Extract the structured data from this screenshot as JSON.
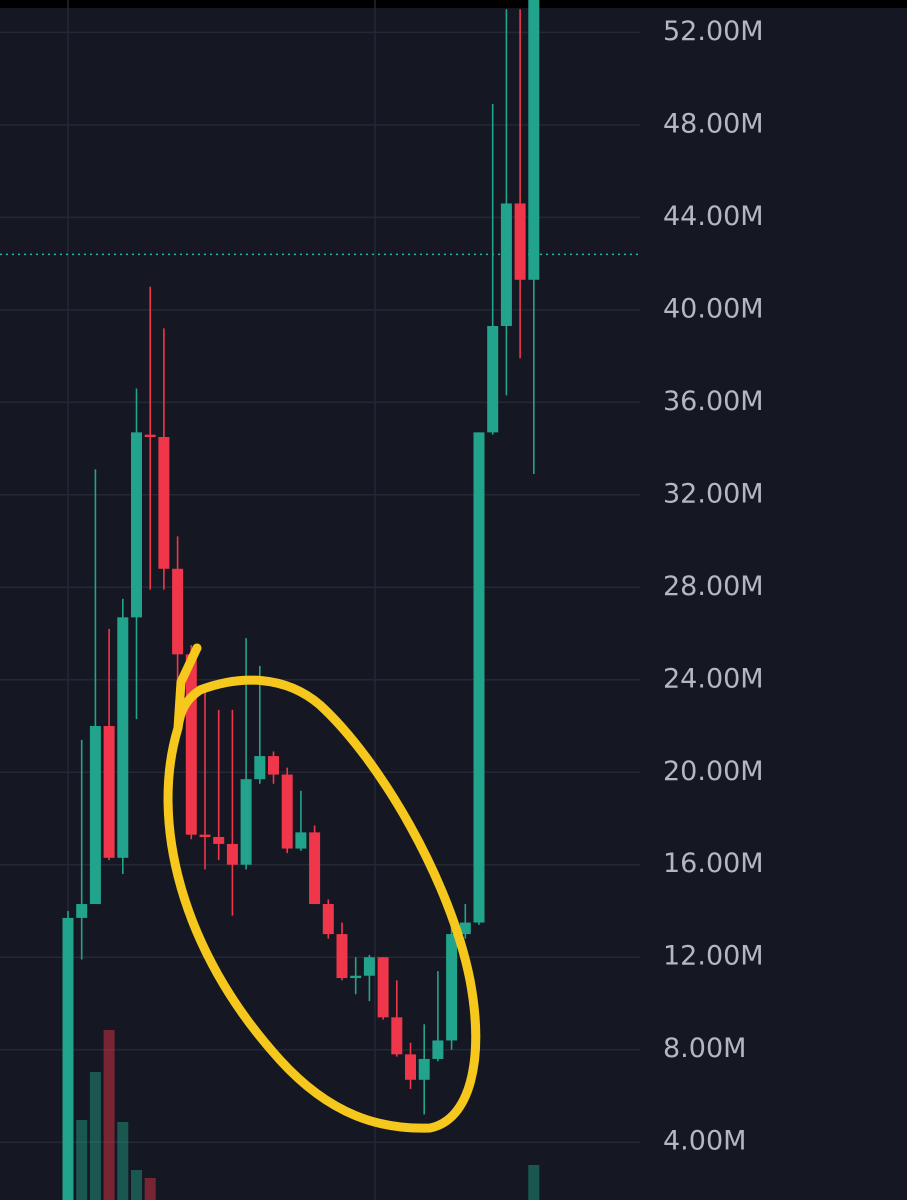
{
  "chart_data": {
    "type": "candlestick",
    "up_color": "#22a48c",
    "down_color": "#f0364a",
    "ylim": [
      1500000,
      53400000
    ],
    "yticks": [
      {
        "value": 4000000,
        "label": "4.00M"
      },
      {
        "value": 8000000,
        "label": "8.00M"
      },
      {
        "value": 12000000,
        "label": "12.00M"
      },
      {
        "value": 16000000,
        "label": "16.00M"
      },
      {
        "value": 20000000,
        "label": "20.00M"
      },
      {
        "value": 24000000,
        "label": "24.00M"
      },
      {
        "value": 28000000,
        "label": "28.00M"
      },
      {
        "value": 32000000,
        "label": "32.00M"
      },
      {
        "value": 36000000,
        "label": "36.00M"
      },
      {
        "value": 40000000,
        "label": "40.00M"
      },
      {
        "value": 44000000,
        "label": "44.00M"
      },
      {
        "value": 48000000,
        "label": "48.00M"
      },
      {
        "value": 52000000,
        "label": "52.00M"
      }
    ],
    "grid": true,
    "price_line": 42400000,
    "candles": [
      {
        "o": 1500000,
        "h": 14000000,
        "l": 1500000,
        "c": 13700000
      },
      {
        "o": 13700000,
        "h": 21400000,
        "l": 11900000,
        "c": 14300000
      },
      {
        "o": 14300000,
        "h": 33100000,
        "l": 14300000,
        "c": 22000000
      },
      {
        "o": 22000000,
        "h": 26200000,
        "l": 16200000,
        "c": 16300000
      },
      {
        "o": 16300000,
        "h": 27500000,
        "l": 15600000,
        "c": 26700000
      },
      {
        "o": 26700000,
        "h": 36600000,
        "l": 22300000,
        "c": 34700000
      },
      {
        "o": 34600000,
        "h": 41000000,
        "l": 27900000,
        "c": 34500000
      },
      {
        "o": 34500000,
        "h": 39200000,
        "l": 27900000,
        "c": 28800000
      },
      {
        "o": 28800000,
        "h": 30200000,
        "l": 23600000,
        "c": 25100000
      },
      {
        "o": 25100000,
        "h": 25500000,
        "l": 17100000,
        "c": 17300000
      },
      {
        "o": 17300000,
        "h": 23600000,
        "l": 15800000,
        "c": 17200000
      },
      {
        "o": 17200000,
        "h": 22700000,
        "l": 16200000,
        "c": 16900000
      },
      {
        "o": 16900000,
        "h": 22700000,
        "l": 13800000,
        "c": 16000000
      },
      {
        "o": 16000000,
        "h": 25800000,
        "l": 15800000,
        "c": 19700000
      },
      {
        "o": 19700000,
        "h": 24600000,
        "l": 19500000,
        "c": 20700000
      },
      {
        "o": 20700000,
        "h": 20900000,
        "l": 19500000,
        "c": 19900000
      },
      {
        "o": 19900000,
        "h": 20200000,
        "l": 16500000,
        "c": 16700000
      },
      {
        "o": 16700000,
        "h": 19200000,
        "l": 16600000,
        "c": 17400000
      },
      {
        "o": 17400000,
        "h": 17700000,
        "l": 14300000,
        "c": 14300000
      },
      {
        "o": 14300000,
        "h": 14500000,
        "l": 12800000,
        "c": 13000000
      },
      {
        "o": 13000000,
        "h": 13500000,
        "l": 11000000,
        "c": 11100000
      },
      {
        "o": 11100000,
        "h": 12000000,
        "l": 10400000,
        "c": 11200000
      },
      {
        "o": 11200000,
        "h": 12100000,
        "l": 10100000,
        "c": 12000000
      },
      {
        "o": 12000000,
        "h": 12000000,
        "l": 9300000,
        "c": 9400000
      },
      {
        "o": 9400000,
        "h": 11000000,
        "l": 7700000,
        "c": 7800000
      },
      {
        "o": 7800000,
        "h": 8300000,
        "l": 6300000,
        "c": 6700000
      },
      {
        "o": 6700000,
        "h": 9100000,
        "l": 5200000,
        "c": 7600000
      },
      {
        "o": 7600000,
        "h": 11400000,
        "l": 7500000,
        "c": 8400000
      },
      {
        "o": 8400000,
        "h": 13600000,
        "l": 8000000,
        "c": 13000000
      },
      {
        "o": 13000000,
        "h": 14300000,
        "l": 12800000,
        "c": 13500000
      },
      {
        "o": 13500000,
        "h": 34700000,
        "l": 13400000,
        "c": 34700000
      },
      {
        "o": 34700000,
        "h": 48900000,
        "l": 34600000,
        "c": 39300000
      },
      {
        "o": 39300000,
        "h": 53000000,
        "l": 36300000,
        "c": 44600000
      },
      {
        "o": 44600000,
        "h": 53000000,
        "l": 37900000,
        "c": 41300000
      },
      {
        "o": 41300000,
        "h": 53400000,
        "l": 32900000,
        "c": 53400000
      }
    ],
    "volume": [
      0,
      80,
      128,
      170,
      78,
      30,
      22,
      0,
      0,
      0,
      0,
      0,
      0,
      0,
      0,
      0,
      0,
      0,
      0,
      0,
      0,
      0,
      0,
      0,
      0,
      0,
      0,
      0,
      0,
      0,
      0,
      0,
      0,
      0,
      35
    ]
  }
}
